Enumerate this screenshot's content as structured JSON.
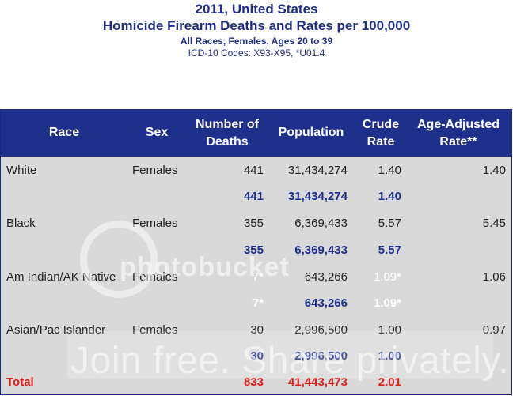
{
  "header": {
    "line1": "2011, United States",
    "line2": "Homicide Firearm Deaths and Rates per 100,000",
    "line3": "All Races, Females, Ages 20 to 39",
    "line4": "ICD-10 Codes: X93-X95, *U01.4"
  },
  "columns": {
    "race": "Race",
    "sex": "Sex",
    "deaths_l1": "Number of",
    "deaths_l2": "Deaths",
    "population": "Population",
    "crude_l1": "Crude",
    "crude_l2": "Rate",
    "adj_l1": "Age-Adjusted",
    "adj_l2": "Rate**"
  },
  "rows": [
    {
      "race": "White",
      "sex": "Females",
      "deaths": "441",
      "population": "31,434,274",
      "crude": "1.40",
      "adjusted": "1.40"
    },
    {
      "deaths": "441",
      "population": "31,434,274",
      "crude": "1.40"
    },
    {
      "race": "Black",
      "sex": "Females",
      "deaths": "355",
      "population": "6,369,433",
      "crude": "5.57",
      "adjusted": "5.45"
    },
    {
      "deaths": "355",
      "population": "6,369,433",
      "crude": "5.57"
    },
    {
      "race": "Am Indian/AK Native",
      "sex": "Females",
      "deaths": "7*",
      "population": "643,266",
      "crude": "1.09*",
      "adjusted": "1.06"
    },
    {
      "deaths": "7*",
      "population": "643,266",
      "crude": "1.09*"
    },
    {
      "race": "Asian/Pac Islander",
      "sex": "Females",
      "deaths": "30",
      "population": "2,996,500",
      "crude": "1.00",
      "adjusted": "0.97"
    },
    {
      "deaths": "30",
      "population": "2,996,500",
      "crude": "1.00"
    }
  ],
  "total": {
    "label": "Total",
    "deaths": "833",
    "population": "41,443,473",
    "crude": "2.01"
  },
  "watermark": {
    "line1": "photobucket",
    "line2": "Join free. Share privately."
  },
  "colors": {
    "header_bg": "#1e2f8c",
    "title": "#1f2f86",
    "subtotal": "#1e2f8c",
    "total": "#e11b1b",
    "table_bg": "#d9d9d9"
  }
}
